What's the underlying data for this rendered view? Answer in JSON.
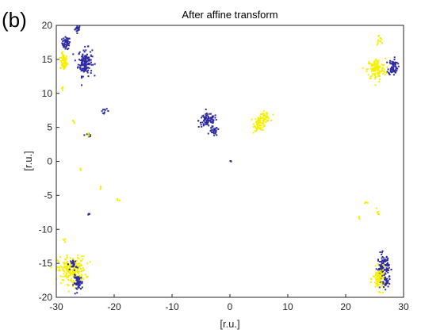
{
  "panel_label": "(b)",
  "chart_data": {
    "type": "scatter",
    "title": "After affine transform",
    "xlabel": "[r.u.]",
    "ylabel": "[r.u.]",
    "xlim": [
      -30,
      30
    ],
    "ylim": [
      -20,
      20
    ],
    "xticks": [
      -30,
      -20,
      -10,
      0,
      10,
      20,
      30
    ],
    "yticks": [
      -20,
      -15,
      -10,
      -5,
      0,
      5,
      10,
      15,
      20
    ],
    "grid": false,
    "box": true,
    "colors": {
      "blue": "#2e2aa0",
      "yellow": "#f7ef00"
    },
    "clusters": [
      {
        "color": "blue",
        "cx": -26.3,
        "cy": 19.5,
        "sx": 0.25,
        "sy": 0.25,
        "n": 20
      },
      {
        "color": "blue",
        "cx": -28.3,
        "cy": 17.4,
        "sx": 0.35,
        "sy": 0.45,
        "n": 50
      },
      {
        "color": "yellow",
        "cx": -28.7,
        "cy": 14.6,
        "sx": 0.3,
        "sy": 0.6,
        "n": 70
      },
      {
        "color": "blue",
        "cx": -25.0,
        "cy": 14.6,
        "sx": 0.6,
        "sy": 1.0,
        "n": 140
      },
      {
        "color": "yellow",
        "cx": -28.9,
        "cy": 10.8,
        "sx": 0.15,
        "sy": 0.15,
        "n": 5
      },
      {
        "color": "blue",
        "cx": -21.6,
        "cy": 7.4,
        "sx": 0.35,
        "sy": 0.15,
        "n": 10
      },
      {
        "color": "yellow",
        "cx": -27.0,
        "cy": 5.8,
        "sx": 0.2,
        "sy": 0.1,
        "n": 4
      },
      {
        "color": "blue",
        "cx": -24.5,
        "cy": 3.9,
        "sx": 0.4,
        "sy": 0.15,
        "n": 8
      },
      {
        "color": "yellow",
        "cx": -24.5,
        "cy": 3.9,
        "sx": 0.1,
        "sy": 0.1,
        "n": 4
      },
      {
        "color": "blue",
        "cx": -3.8,
        "cy": 6.0,
        "sx": 0.8,
        "sy": 0.5,
        "n": 90
      },
      {
        "color": "blue",
        "cx": -2.8,
        "cy": 4.4,
        "sx": 0.35,
        "sy": 0.35,
        "n": 30
      },
      {
        "color": "yellow",
        "cx": 5.2,
        "cy": 5.6,
        "sx": 0.5,
        "sy": 0.55,
        "n": 80
      },
      {
        "color": "yellow",
        "cx": 6.2,
        "cy": 6.6,
        "sx": 0.4,
        "sy": 0.35,
        "n": 30
      },
      {
        "color": "blue",
        "cx": 0.0,
        "cy": 0.0,
        "sx": 0.15,
        "sy": 0.06,
        "n": 3
      },
      {
        "color": "yellow",
        "cx": 25.8,
        "cy": 17.8,
        "sx": 0.3,
        "sy": 0.4,
        "n": 12
      },
      {
        "color": "yellow",
        "cx": 25.3,
        "cy": 13.5,
        "sx": 0.8,
        "sy": 0.8,
        "n": 130
      },
      {
        "color": "blue",
        "cx": 28.2,
        "cy": 13.9,
        "sx": 0.4,
        "sy": 0.6,
        "n": 70
      },
      {
        "color": "yellow",
        "cx": -25.8,
        "cy": -1.2,
        "sx": 0.1,
        "sy": 0.1,
        "n": 3
      },
      {
        "color": "yellow",
        "cx": -22.5,
        "cy": -3.9,
        "sx": 0.1,
        "sy": 0.1,
        "n": 3
      },
      {
        "color": "yellow",
        "cx": -19.3,
        "cy": -5.7,
        "sx": 0.15,
        "sy": 0.1,
        "n": 4
      },
      {
        "color": "blue",
        "cx": -24.5,
        "cy": -7.8,
        "sx": 0.1,
        "sy": 0.15,
        "n": 4
      },
      {
        "color": "yellow",
        "cx": 23.5,
        "cy": -6.2,
        "sx": 0.2,
        "sy": 0.2,
        "n": 4
      },
      {
        "color": "yellow",
        "cx": 25.5,
        "cy": -7.5,
        "sx": 0.15,
        "sy": 0.4,
        "n": 6
      },
      {
        "color": "yellow",
        "cx": 22.3,
        "cy": -8.3,
        "sx": 0.1,
        "sy": 0.1,
        "n": 3
      },
      {
        "color": "yellow",
        "cx": -28.7,
        "cy": -11.6,
        "sx": 0.15,
        "sy": 0.15,
        "n": 4
      },
      {
        "color": "yellow",
        "cx": -27.3,
        "cy": -16.0,
        "sx": 1.2,
        "sy": 1.0,
        "n": 220
      },
      {
        "color": "blue",
        "cx": -26.2,
        "cy": -17.9,
        "sx": 0.4,
        "sy": 0.55,
        "n": 60
      },
      {
        "color": "blue",
        "cx": -27.0,
        "cy": -15.2,
        "sx": 0.25,
        "sy": 0.4,
        "n": 25
      },
      {
        "color": "blue",
        "cx": 26.5,
        "cy": -15.6,
        "sx": 0.5,
        "sy": 1.0,
        "n": 110
      },
      {
        "color": "yellow",
        "cx": 25.8,
        "cy": -17.3,
        "sx": 0.55,
        "sy": 0.8,
        "n": 90
      },
      {
        "color": "blue",
        "cx": 27.0,
        "cy": -17.8,
        "sx": 0.35,
        "sy": 0.5,
        "n": 30
      }
    ]
  }
}
